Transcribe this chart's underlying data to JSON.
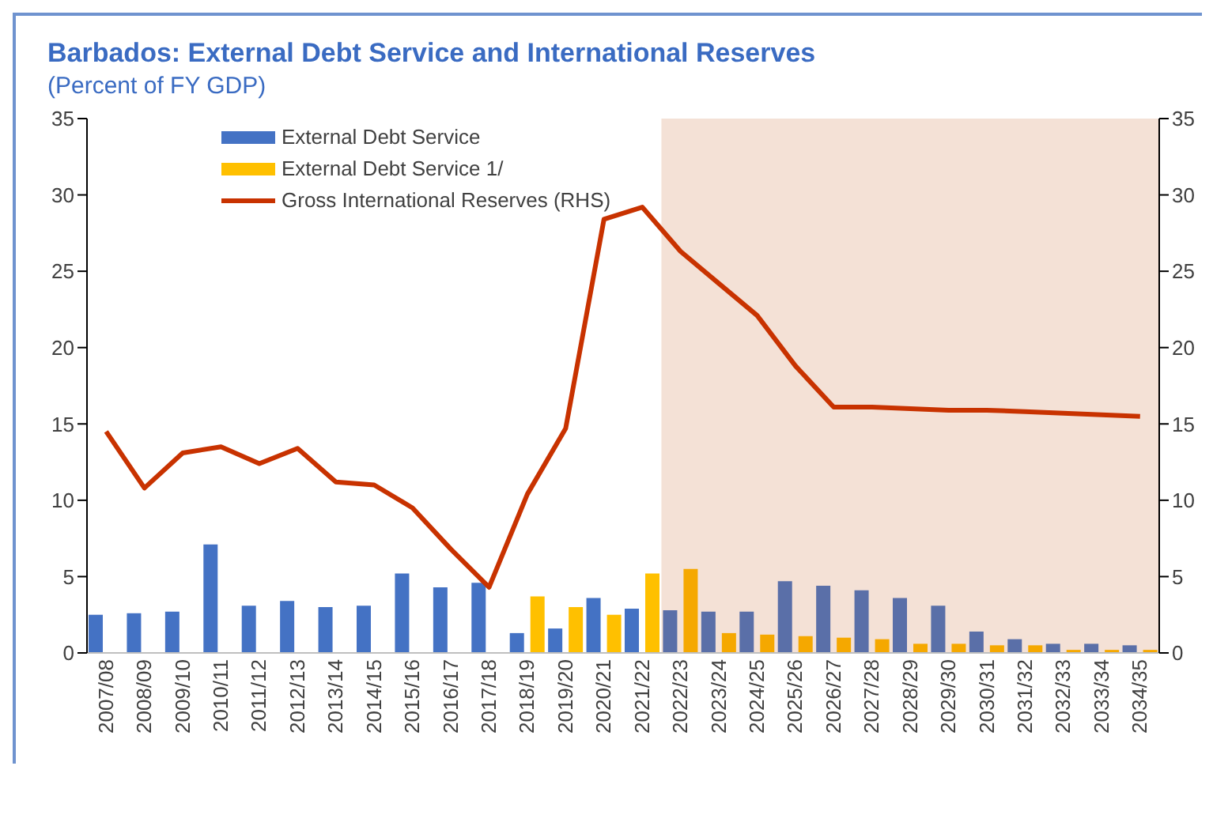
{
  "chart_data": {
    "type": "bar",
    "title": "Barbados: External Debt Service and International Reserves",
    "subtitle": "(Percent of FY GDP)",
    "categories": [
      "2007/08",
      "2008/09",
      "2009/10",
      "2010/11",
      "2011/12",
      "2012/13",
      "2013/14",
      "2014/15",
      "2015/16",
      "2016/17",
      "2017/18",
      "2018/19",
      "2019/20",
      "2020/21",
      "2021/22",
      "2022/23",
      "2023/24",
      "2024/25",
      "2025/26",
      "2026/27",
      "2027/28",
      "2028/29",
      "2029/30",
      "2030/31",
      "2031/32",
      "2032/33",
      "2033/34",
      "2034/35"
    ],
    "series": [
      {
        "name": "External Debt Service",
        "color": "#4472c4",
        "colors": [
          "#4472c4",
          "#4472c4",
          "#4472c4",
          "#4472c4",
          "#4472c4",
          "#4472c4",
          "#4472c4",
          "#4472c4",
          "#4472c4",
          "#4472c4",
          "#4472c4",
          "#4472c4",
          "#4472c4",
          "#4472c4",
          "#4472c4",
          "#5a6fa8",
          "#5a6fa8",
          "#5a6fa8",
          "#5a6fa8",
          "#5a6fa8",
          "#5a6fa8",
          "#5a6fa8",
          "#5a6fa8",
          "#5a6fa8",
          "#5a6fa8",
          "#5a6fa8",
          "#5a6fa8",
          "#5a6fa8"
        ],
        "values": [
          2.5,
          2.6,
          2.7,
          7.1,
          3.1,
          3.4,
          3.0,
          3.1,
          5.2,
          4.3,
          4.6,
          1.3,
          1.6,
          3.6,
          2.9,
          2.8,
          2.7,
          2.7,
          4.7,
          4.4,
          4.1,
          3.6,
          3.1,
          1.4,
          0.9,
          0.6,
          0.6,
          0.5
        ]
      },
      {
        "name": "External Debt Service 1/",
        "color": "#ffc000",
        "colors": [
          "#ffc000",
          "#ffc000",
          "#ffc000",
          "#ffc000",
          "#ffc000",
          "#ffc000",
          "#ffc000",
          "#ffc000",
          "#ffc000",
          "#ffc000",
          "#ffc000",
          "#ffc000",
          "#ffc000",
          "#ffc000",
          "#ffc000",
          "#f5a800",
          "#f5a800",
          "#f5a800",
          "#f5a800",
          "#f5a800",
          "#f5a800",
          "#f5a800",
          "#f5a800",
          "#f5a800",
          "#f5a800",
          "#f5a800",
          "#f5a800",
          "#f5a800"
        ],
        "values": [
          null,
          null,
          null,
          null,
          null,
          null,
          null,
          null,
          null,
          null,
          null,
          3.7,
          3.0,
          2.5,
          5.2,
          5.5,
          1.3,
          1.2,
          1.1,
          1.0,
          0.9,
          0.6,
          0.6,
          0.5,
          0.5,
          0.2,
          0.2,
          0.2
        ]
      },
      {
        "name": "Gross International Reserves (RHS)",
        "type": "line",
        "axis": "y2",
        "color": "#c83200",
        "values": [
          14.5,
          10.8,
          13.1,
          13.5,
          12.4,
          13.4,
          11.2,
          11.0,
          9.5,
          6.8,
          4.3,
          10.4,
          14.7,
          28.4,
          29.2,
          26.3,
          24.2,
          22.1,
          18.8,
          16.1,
          16.1,
          16.0,
          15.9,
          15.9,
          15.8,
          15.7,
          15.6,
          15.5
        ]
      }
    ],
    "ylim": [
      0,
      35
    ],
    "yticks": [
      0,
      5,
      10,
      15,
      20,
      25,
      30,
      35
    ],
    "y2lim": [
      0,
      35
    ],
    "y2ticks": [
      0,
      5,
      10,
      15,
      20,
      25,
      30,
      35
    ],
    "bands": [
      {
        "axis": "x",
        "from": "2022/23",
        "to": "2034/35",
        "color": "#f4e1d6"
      }
    ],
    "legend": "top left",
    "grid": false
  }
}
